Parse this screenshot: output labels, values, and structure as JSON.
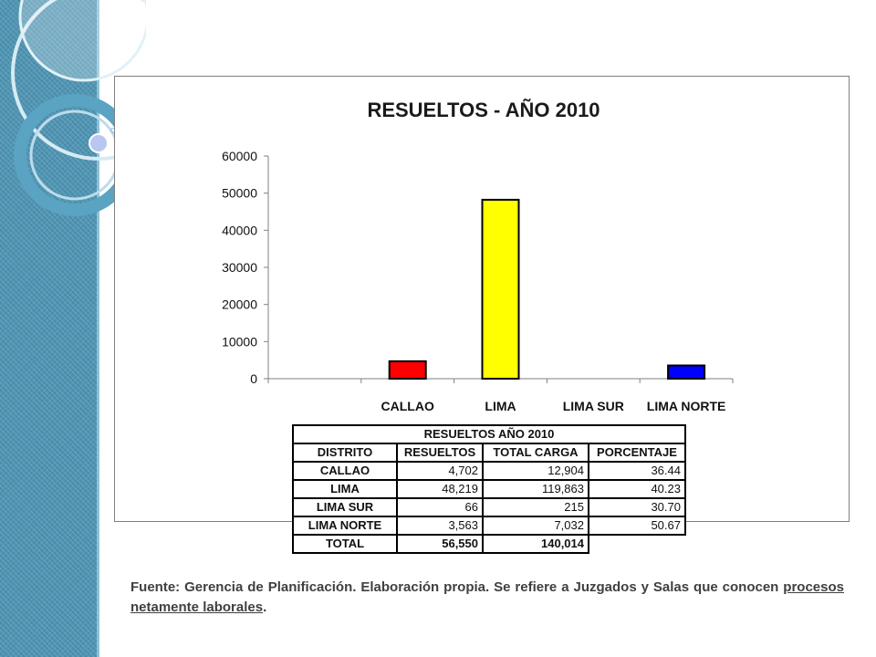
{
  "chart_data": {
    "type": "bar",
    "title": "RESUELTOS - AÑO 2010",
    "categories": [
      "CALLAO",
      "LIMA",
      "LIMA SUR",
      "LIMA NORTE"
    ],
    "values": [
      4702,
      48219,
      66,
      3563
    ],
    "colors": [
      "#ff0000",
      "#ffff00",
      "#ffffff",
      "#0000ff"
    ],
    "yticks": [
      "0",
      "10000",
      "20000",
      "30000",
      "40000",
      "50000",
      "60000"
    ],
    "ylim": [
      0,
      60000
    ],
    "grid": false,
    "legend": "none"
  },
  "table": {
    "caption": "RESUELTOS AÑO 2010",
    "headers": [
      "DISTRITO",
      "RESUELTOS",
      "TOTAL CARGA",
      "PORCENTAJE"
    ],
    "rows": [
      [
        "CALLAO",
        "4,702",
        "12,904",
        "36.44"
      ],
      [
        "LIMA",
        "48,219",
        "119,863",
        "40.23"
      ],
      [
        "LIMA SUR",
        "66",
        "215",
        "30.70"
      ],
      [
        "LIMA NORTE",
        "3,563",
        "7,032",
        "50.67"
      ]
    ],
    "total": [
      "TOTAL",
      "56,550",
      "140,014"
    ]
  },
  "note": {
    "text": "Fuente: Gerencia de Planificación. Elaboración propia. Se refiere a Juzgados y Salas que conocen ",
    "underlined": "procesos netamente laborales",
    "end": "."
  }
}
